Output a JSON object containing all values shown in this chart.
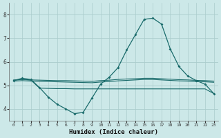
{
  "xlabel": "Humidex (Indice chaleur)",
  "xlim": [
    -0.5,
    23.5
  ],
  "ylim": [
    3.5,
    8.5
  ],
  "yticks": [
    4,
    5,
    6,
    7,
    8
  ],
  "xticks": [
    0,
    1,
    2,
    3,
    4,
    5,
    6,
    7,
    8,
    9,
    10,
    11,
    12,
    13,
    14,
    15,
    16,
    17,
    18,
    19,
    20,
    21,
    22,
    23
  ],
  "bg_color": "#cce8e8",
  "grid_color": "#aacccc",
  "line_color": "#1a6b6b",
  "line1_x": [
    0,
    1,
    2,
    3,
    4,
    5,
    6,
    7,
    8,
    9,
    10,
    11,
    12,
    13,
    14,
    15,
    16,
    17,
    18,
    19,
    20,
    21,
    22,
    23
  ],
  "line1_y": [
    5.2,
    5.3,
    5.25,
    4.9,
    4.5,
    4.2,
    4.0,
    3.8,
    3.85,
    4.45,
    5.05,
    5.35,
    5.75,
    6.5,
    7.15,
    7.8,
    7.85,
    7.6,
    6.55,
    5.8,
    5.4,
    5.2,
    5.05,
    4.65
  ],
  "line2_x": [
    0,
    1,
    2,
    3,
    4,
    5,
    6,
    7,
    8,
    9,
    10,
    11,
    12,
    13,
    14,
    15,
    16,
    17,
    18,
    19,
    20,
    21,
    22,
    23
  ],
  "line2_y": [
    5.22,
    5.25,
    5.23,
    5.22,
    5.21,
    5.2,
    5.2,
    5.19,
    5.18,
    5.17,
    5.2,
    5.22,
    5.25,
    5.27,
    5.28,
    5.3,
    5.3,
    5.28,
    5.26,
    5.24,
    5.23,
    5.21,
    5.2,
    5.18
  ],
  "line3_x": [
    0,
    1,
    2,
    3,
    4,
    5,
    6,
    7,
    8,
    9,
    10,
    11,
    12,
    13,
    14,
    15,
    16,
    17,
    18,
    19,
    20,
    21,
    22,
    23
  ],
  "line3_y": [
    5.18,
    5.2,
    5.18,
    5.17,
    5.16,
    5.15,
    5.14,
    5.13,
    5.12,
    5.11,
    5.14,
    5.16,
    5.19,
    5.21,
    5.23,
    5.25,
    5.25,
    5.23,
    5.21,
    5.19,
    5.18,
    5.16,
    5.15,
    5.13
  ],
  "line4_x": [
    0,
    1,
    2,
    3,
    4,
    5,
    6,
    7,
    8,
    9,
    10,
    11,
    12,
    13,
    14,
    15,
    16,
    17,
    18,
    19,
    20,
    21,
    22,
    23
  ],
  "line4_y": [
    5.22,
    5.25,
    5.22,
    4.88,
    4.87,
    4.86,
    4.86,
    4.85,
    4.85,
    4.85,
    4.85,
    4.85,
    4.85,
    4.85,
    4.85,
    4.85,
    4.85,
    4.85,
    4.85,
    4.85,
    4.85,
    4.85,
    4.85,
    4.65
  ]
}
